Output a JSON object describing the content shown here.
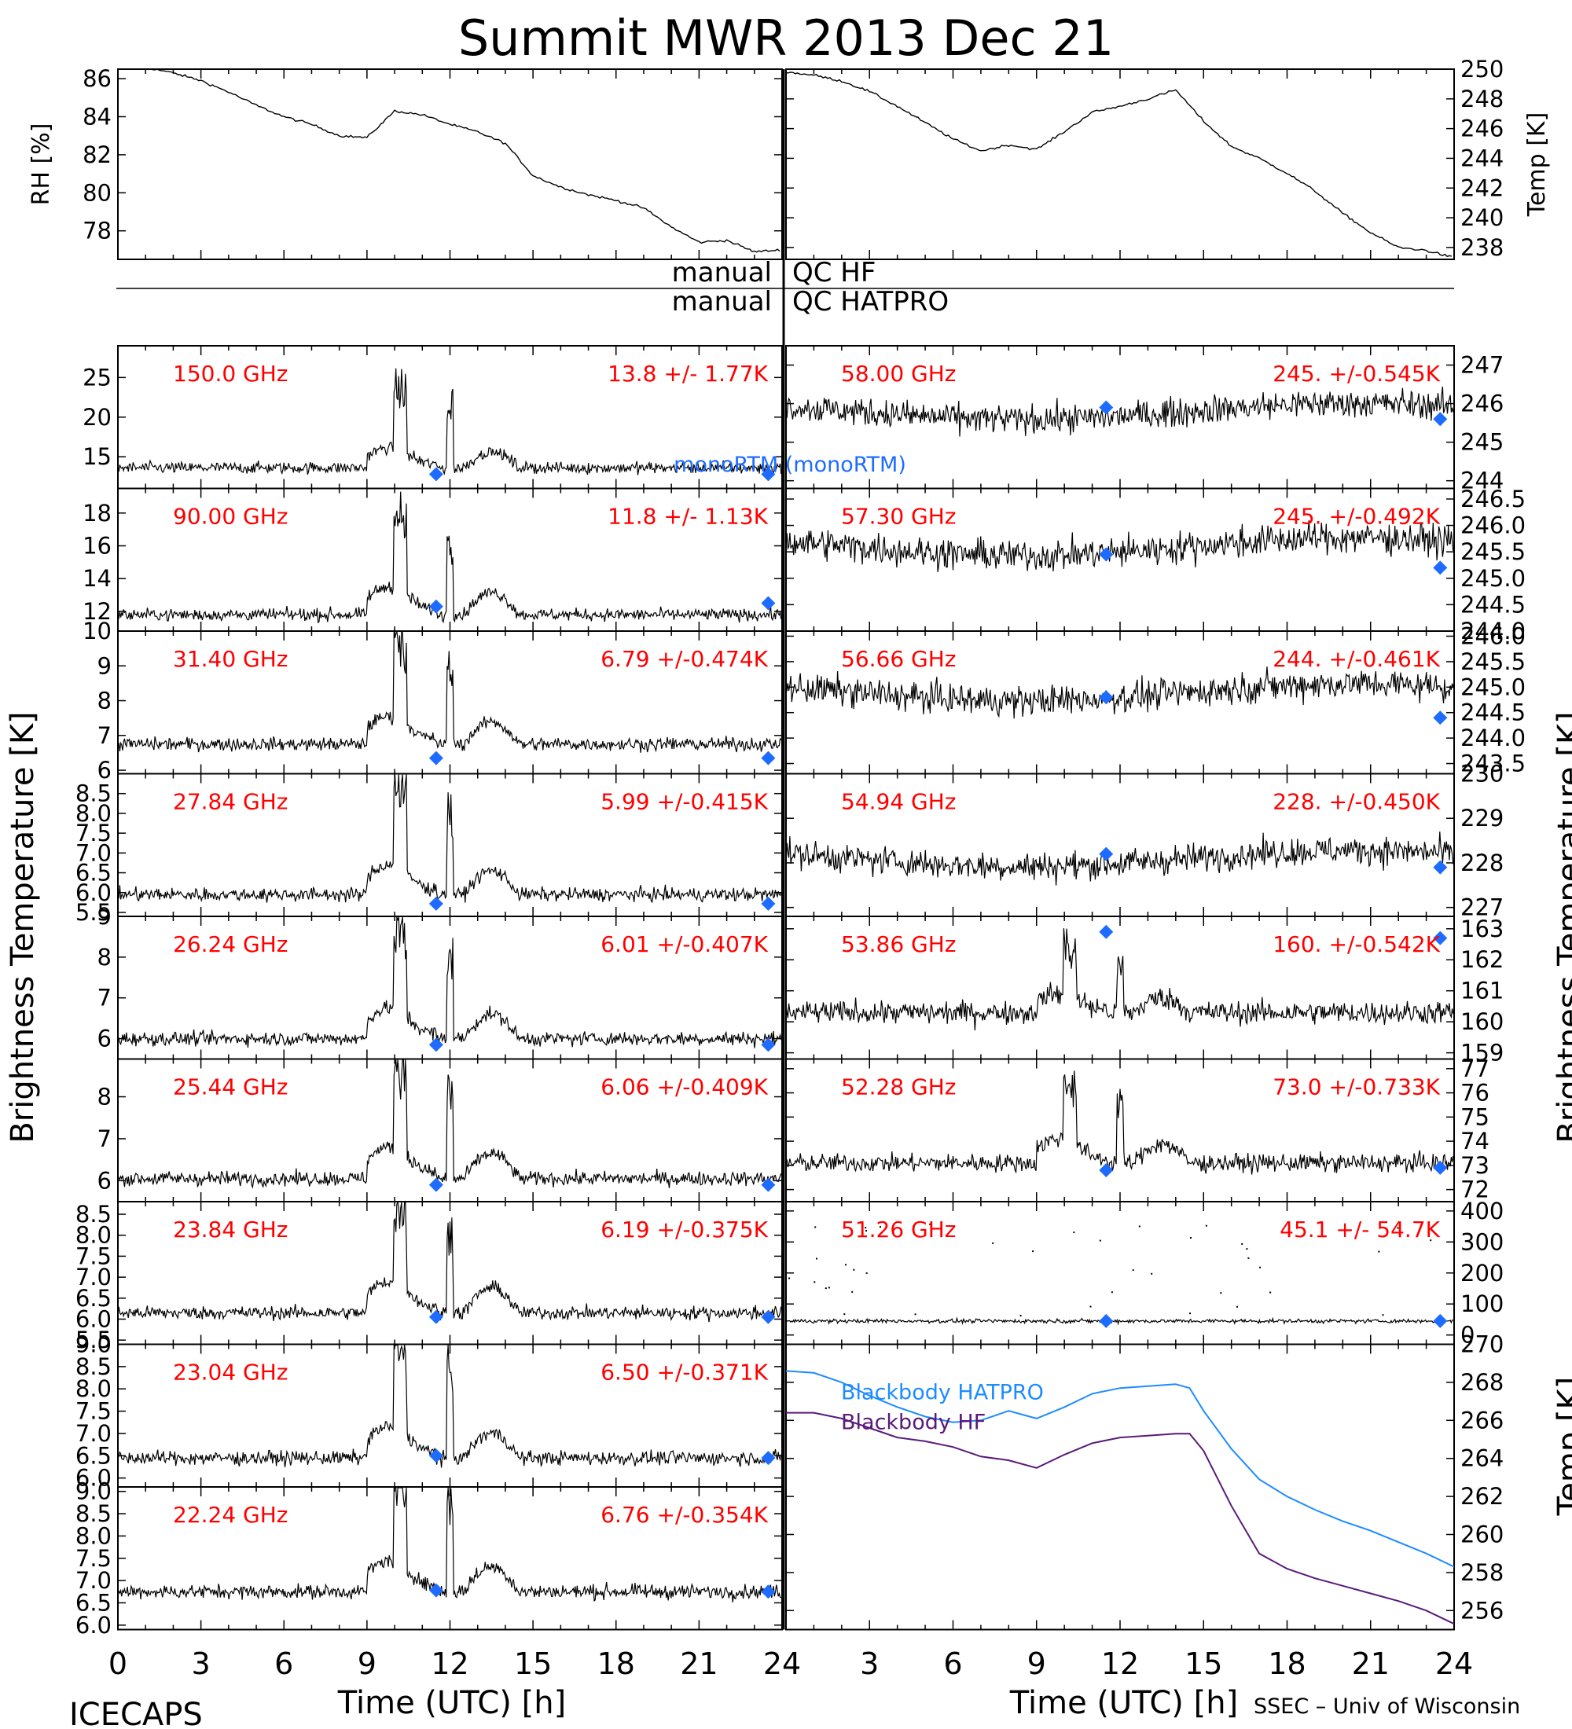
{
  "title": "Summit MWR 2013 Dec 21",
  "footer_left": "ICECAPS",
  "footer_right": "SSEC – Univ of Wisconsin",
  "xlabel": "Time (UTC) [h]",
  "ylabel_left": "Brightness Temperature [K]",
  "ylabel_right_bt": "Brightness Temperature [K]",
  "ylabel_right_bb": "Temp [K]",
  "qc": {
    "hf_left": "manual",
    "hf_right": "QC HF",
    "hatpro_left": "manual",
    "hatpro_right": "QC HATPRO"
  },
  "legend_mono": "monoRTM (monoRTM)",
  "colors": {
    "label": "#ff0000",
    "marker": "#1e6cff",
    "bb_hatpro": "#1e8cff",
    "bb_hf": "#5a1a7a",
    "data": "#000000"
  },
  "chart_data": [
    {
      "type": "line",
      "name": "RH",
      "ylabel": "RH [%]",
      "xlim": [
        0,
        24
      ],
      "ylim": [
        76.5,
        86.5
      ],
      "yticks": [
        "78",
        "80",
        "82",
        "84",
        "86"
      ],
      "x": [
        0,
        1,
        2,
        3,
        4,
        5,
        6,
        7,
        8,
        9,
        10,
        11,
        12,
        13,
        14,
        15,
        16,
        17,
        18,
        19,
        20,
        21,
        22,
        23,
        24
      ],
      "y": [
        86.7,
        86.6,
        86.3,
        85.9,
        85.3,
        84.6,
        84.0,
        83.6,
        83.0,
        82.9,
        84.3,
        84.1,
        83.6,
        83.2,
        82.6,
        80.9,
        80.3,
        79.9,
        79.6,
        79.2,
        78.2,
        77.4,
        77.5,
        76.9,
        77.0
      ]
    },
    {
      "type": "line",
      "name": "Temp",
      "ylabel": "Temp [K]",
      "xlim": [
        0,
        24
      ],
      "ylim": [
        237.2,
        250.0
      ],
      "yticks": [
        "238",
        "240",
        "242",
        "244",
        "246",
        "248",
        "250"
      ],
      "x": [
        0,
        1,
        2,
        3,
        4,
        5,
        6,
        7,
        8,
        9,
        10,
        11,
        12,
        13,
        14,
        15,
        16,
        17,
        18,
        19,
        20,
        21,
        22,
        23,
        24
      ],
      "y": [
        249.8,
        249.6,
        249.2,
        248.5,
        247.5,
        246.4,
        245.3,
        244.5,
        244.9,
        244.6,
        245.8,
        247.1,
        247.5,
        248.0,
        248.6,
        246.5,
        244.8,
        244.0,
        243.0,
        241.8,
        240.3,
        239.0,
        238.0,
        237.8,
        237.3
      ]
    },
    {
      "type": "scatter",
      "freq": "150.0 GHz",
      "stat": "13.8 +/-  1.77K",
      "ylim": [
        11.0,
        29.0
      ],
      "yticks": [
        "15",
        "20",
        "25"
      ],
      "base": 13.6,
      "noise": 0.7,
      "rise": 2.5,
      "spike": 10.5,
      "monortm": [
        [
          11.5,
          12.8
        ],
        [
          23.5,
          12.8
        ]
      ]
    },
    {
      "type": "scatter",
      "freq": "90.00 GHz",
      "stat": "11.8 +/-  1.13K",
      "ylim": [
        10.8,
        19.5
      ],
      "yticks": [
        "12",
        "14",
        "16",
        "18"
      ],
      "base": 11.8,
      "noise": 0.35,
      "rise": 1.7,
      "spike": 6.5,
      "monortm": [
        [
          11.5,
          12.3
        ],
        [
          23.5,
          12.5
        ]
      ]
    },
    {
      "type": "scatter",
      "freq": "31.40 GHz",
      "stat": "6.79 +/-0.474K",
      "ylim": [
        5.9,
        10.0
      ],
      "yticks": [
        "6",
        "7",
        "8",
        "9",
        "10"
      ],
      "base": 6.75,
      "noise": 0.18,
      "rise": 0.8,
      "spike": 3.0,
      "monortm": [
        [
          11.5,
          6.35
        ],
        [
          23.5,
          6.35
        ]
      ]
    },
    {
      "type": "scatter",
      "freq": "27.84 GHz",
      "stat": "5.99 +/-0.415K",
      "ylim": [
        5.4,
        9.0
      ],
      "yticks": [
        "5.5",
        "6.0",
        "6.5",
        "7.0",
        "7.5",
        "8.0",
        "8.5"
      ],
      "base": 5.95,
      "noise": 0.16,
      "rise": 0.75,
      "spike": 2.7,
      "monortm": [
        [
          11.5,
          5.72
        ],
        [
          23.5,
          5.72
        ]
      ]
    },
    {
      "type": "scatter",
      "freq": "26.24 GHz",
      "stat": "6.01 +/-0.407K",
      "ylim": [
        5.5,
        9.0
      ],
      "yticks": [
        "6",
        "7",
        "8",
        "9"
      ],
      "base": 6.0,
      "noise": 0.16,
      "rise": 0.75,
      "spike": 2.6,
      "monortm": [
        [
          11.5,
          5.85
        ],
        [
          23.5,
          5.85
        ]
      ]
    },
    {
      "type": "scatter",
      "freq": "25.44 GHz",
      "stat": "6.06 +/-0.409K",
      "ylim": [
        5.5,
        8.9
      ],
      "yticks": [
        "6",
        "7",
        "8"
      ],
      "base": 6.05,
      "noise": 0.16,
      "rise": 0.75,
      "spike": 2.6,
      "monortm": [
        [
          11.5,
          5.9
        ],
        [
          23.5,
          5.9
        ]
      ]
    },
    {
      "type": "scatter",
      "freq": "23.84 GHz",
      "stat": "6.19 +/-0.375K",
      "ylim": [
        5.4,
        8.8
      ],
      "yticks": [
        "5.5",
        "6.0",
        "6.5",
        "7.0",
        "7.5",
        "8.0",
        "8.5"
      ],
      "base": 6.15,
      "noise": 0.15,
      "rise": 0.75,
      "spike": 2.5,
      "monortm": [
        [
          11.5,
          6.05
        ],
        [
          23.5,
          6.05
        ]
      ]
    },
    {
      "type": "scatter",
      "freq": "23.04 GHz",
      "stat": "6.50 +/-0.371K",
      "ylim": [
        5.8,
        9.0
      ],
      "yticks": [
        "6.0",
        "6.5",
        "7.0",
        "7.5",
        "8.0",
        "8.5",
        "9.0"
      ],
      "base": 6.45,
      "noise": 0.15,
      "rise": 0.7,
      "spike": 2.4,
      "monortm": [
        [
          11.5,
          6.5
        ],
        [
          23.5,
          6.45
        ]
      ]
    },
    {
      "type": "scatter",
      "freq": "22.24 GHz",
      "stat": "6.76 +/-0.354K",
      "ylim": [
        5.9,
        9.1
      ],
      "yticks": [
        "6.0",
        "6.5",
        "7.0",
        "7.5",
        "8.0",
        "8.5",
        "9.0"
      ],
      "base": 6.75,
      "noise": 0.15,
      "rise": 0.7,
      "spike": 2.4,
      "monortm": [
        [
          11.5,
          6.78
        ],
        [
          23.5,
          6.75
        ]
      ]
    },
    {
      "type": "scatter",
      "freq": "58.00 GHz",
      "stat": "245. +/-0.545K",
      "ylim": [
        243.8,
        247.5
      ],
      "yticks": [
        "244",
        "245",
        "246",
        "247"
      ],
      "base": 245.8,
      "noise": 0.35,
      "rise": 0.0,
      "spike": 0.0,
      "monortm": [
        [
          11.5,
          245.9
        ],
        [
          23.5,
          245.6
        ]
      ]
    },
    {
      "type": "scatter",
      "freq": "57.30 GHz",
      "stat": "245. +/-0.492K",
      "ylim": [
        244.0,
        246.7
      ],
      "yticks": [
        "244.0",
        "244.5",
        "245.0",
        "245.5",
        "246.0",
        "246.5"
      ],
      "base": 245.6,
      "noise": 0.28,
      "rise": 0.0,
      "spike": 0.0,
      "monortm": [
        [
          11.5,
          245.45
        ],
        [
          23.5,
          245.2
        ]
      ]
    },
    {
      "type": "scatter",
      "freq": "56.66 GHz",
      "stat": "244. +/-0.461K",
      "ylim": [
        243.3,
        246.1
      ],
      "yticks": [
        "243.5",
        "244.0",
        "244.5",
        "245.0",
        "245.5",
        "246.0"
      ],
      "base": 244.9,
      "noise": 0.28,
      "rise": 0.0,
      "spike": 0.0,
      "monortm": [
        [
          11.5,
          244.8
        ],
        [
          23.5,
          244.4
        ]
      ]
    },
    {
      "type": "scatter",
      "freq": "54.94 GHz",
      "stat": "228. +/-0.450K",
      "ylim": [
        226.8,
        230.0
      ],
      "yticks": [
        "227",
        "228",
        "229",
        "230"
      ],
      "base": 228.1,
      "noise": 0.3,
      "rise": 0.0,
      "spike": 0.0,
      "monortm": [
        [
          11.5,
          228.2
        ],
        [
          23.5,
          227.9
        ]
      ]
    },
    {
      "type": "scatter",
      "freq": "53.86 GHz",
      "stat": "160. +/-0.542K",
      "ylim": [
        158.8,
        163.4
      ],
      "yticks": [
        "159",
        "160",
        "161",
        "162",
        "163"
      ],
      "base": 160.3,
      "noise": 0.35,
      "rise": 0.6,
      "spike": 2.0,
      "monortm": [
        [
          11.5,
          162.9
        ],
        [
          23.5,
          162.7
        ]
      ]
    },
    {
      "type": "scatter",
      "freq": "52.28 GHz",
      "stat": "73.0 +/-0.733K",
      "ylim": [
        71.5,
        77.4
      ],
      "yticks": [
        "72",
        "73",
        "74",
        "75",
        "76",
        "77"
      ],
      "base": 73.1,
      "noise": 0.35,
      "rise": 1.0,
      "spike": 3.2,
      "monortm": [
        [
          11.5,
          72.8
        ],
        [
          23.5,
          72.9
        ]
      ]
    },
    {
      "type": "scatter",
      "freq": "51.26 GHz",
      "stat": "45.1 +/-  54.7K",
      "ylim": [
        -30,
        430
      ],
      "yticks": [
        "0",
        "100",
        "200",
        "300",
        "400"
      ],
      "base": 45.0,
      "noise": 6.0,
      "rise": 0.0,
      "spike": 0.0,
      "monortm": [
        [
          11.5,
          45.0
        ],
        [
          23.5,
          45.0
        ]
      ]
    },
    {
      "type": "line",
      "name": "blackbody",
      "ylabel": "Temp [K]",
      "xlim": [
        0,
        24
      ],
      "ylim": [
        255.0,
        270.0
      ],
      "yticks": [
        "256",
        "258",
        "260",
        "262",
        "264",
        "266",
        "268",
        "270"
      ],
      "series": [
        {
          "name": "Blackbody HATPRO",
          "x": [
            0,
            1,
            2,
            3,
            4,
            5,
            6,
            7,
            8,
            9,
            10,
            11,
            12,
            13,
            14,
            14.5,
            15,
            16,
            17,
            18,
            19,
            20,
            21,
            22,
            23,
            24
          ],
          "y": [
            268.6,
            268.5,
            268.0,
            267.3,
            266.7,
            266.2,
            265.9,
            266.0,
            266.5,
            266.1,
            266.7,
            267.4,
            267.7,
            267.8,
            267.9,
            267.7,
            266.5,
            264.5,
            262.9,
            262.0,
            261.3,
            260.7,
            260.2,
            259.6,
            259.0,
            258.3
          ]
        },
        {
          "name": "Blackbody HF",
          "x": [
            0,
            1,
            2,
            3,
            4,
            5,
            6,
            7,
            8,
            9,
            10,
            11,
            12,
            13,
            14,
            14.5,
            15,
            16,
            17,
            18,
            19,
            20,
            21,
            22,
            23,
            24
          ],
          "y": [
            266.4,
            266.4,
            266.1,
            265.6,
            265.1,
            264.9,
            264.6,
            264.1,
            263.9,
            263.5,
            264.2,
            264.8,
            265.1,
            265.2,
            265.3,
            265.3,
            264.4,
            261.5,
            259.0,
            258.2,
            257.7,
            257.3,
            256.9,
            256.5,
            256.0,
            255.3
          ]
        }
      ]
    }
  ],
  "x_ticks": [
    "0",
    "3",
    "6",
    "9",
    "12",
    "15",
    "18",
    "21",
    "24"
  ]
}
